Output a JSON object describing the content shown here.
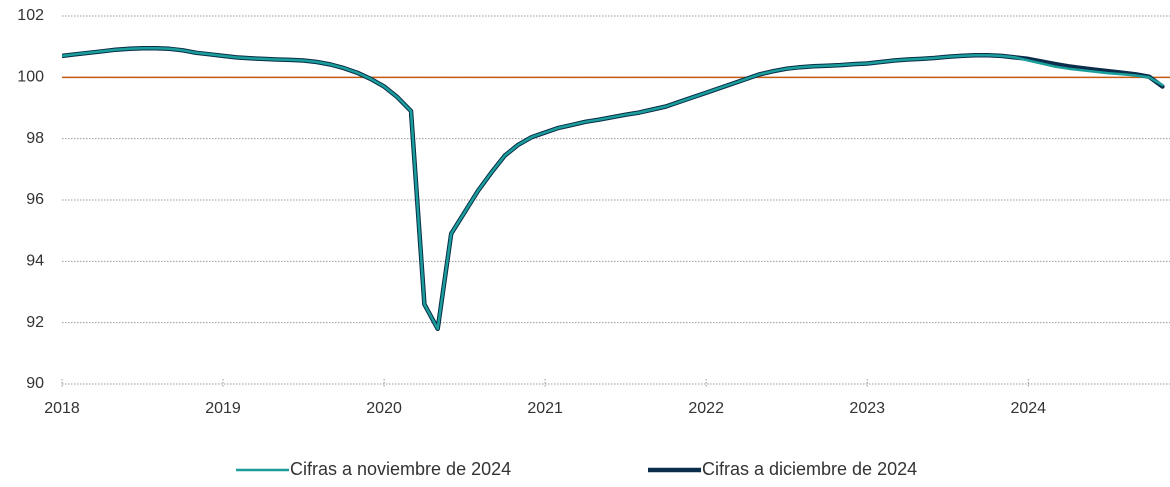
{
  "chart_data": {
    "type": "line",
    "x": [
      2018,
      2018.083,
      2018.167,
      2018.25,
      2018.333,
      2018.417,
      2018.5,
      2018.583,
      2018.667,
      2018.75,
      2018.833,
      2018.917,
      2019,
      2019.083,
      2019.167,
      2019.25,
      2019.333,
      2019.417,
      2019.5,
      2019.583,
      2019.667,
      2019.75,
      2019.833,
      2019.917,
      2020,
      2020.083,
      2020.167,
      2020.25,
      2020.333,
      2020.417,
      2020.5,
      2020.583,
      2020.667,
      2020.75,
      2020.833,
      2020.917,
      2021,
      2021.083,
      2021.167,
      2021.25,
      2021.333,
      2021.417,
      2021.5,
      2021.583,
      2021.667,
      2021.75,
      2021.833,
      2021.917,
      2022,
      2022.083,
      2022.167,
      2022.25,
      2022.333,
      2022.417,
      2022.5,
      2022.583,
      2022.667,
      2022.75,
      2022.833,
      2022.917,
      2023,
      2023.083,
      2023.167,
      2023.25,
      2023.333,
      2023.417,
      2023.5,
      2023.583,
      2023.667,
      2023.75,
      2023.833,
      2023.917,
      2024,
      2024.083,
      2024.167,
      2024.25,
      2024.333,
      2024.417,
      2024.5,
      2024.583,
      2024.667,
      2024.75,
      2024.833
    ],
    "series": [
      {
        "name": "Cifras a noviembre de 2024",
        "color": "#1a9e9a",
        "values": [
          100.7,
          100.75,
          100.8,
          100.85,
          100.9,
          100.93,
          100.95,
          100.95,
          100.93,
          100.88,
          100.8,
          100.75,
          100.7,
          100.65,
          100.62,
          100.6,
          100.58,
          100.57,
          100.55,
          100.5,
          100.42,
          100.3,
          100.15,
          99.95,
          99.7,
          99.35,
          98.9,
          92.6,
          91.8,
          94.9,
          95.6,
          96.3,
          96.9,
          97.45,
          97.8,
          98.05,
          98.2,
          98.35,
          98.45,
          98.55,
          98.62,
          98.7,
          98.78,
          98.85,
          98.95,
          99.05,
          99.2,
          99.35,
          99.5,
          99.65,
          99.8,
          99.95,
          100.1,
          100.2,
          100.28,
          100.33,
          100.36,
          100.38,
          100.4,
          100.43,
          100.45,
          100.5,
          100.55,
          100.58,
          100.6,
          100.63,
          100.67,
          100.7,
          100.72,
          100.72,
          100.7,
          100.65,
          100.55,
          100.45,
          100.35,
          100.28,
          100.23,
          100.18,
          100.13,
          100.1,
          100.06,
          100.0,
          99.75
        ]
      },
      {
        "name": "Cifras a diciembre de 2024",
        "color": "#0b2c4a",
        "values": [
          100.7,
          100.75,
          100.8,
          100.85,
          100.9,
          100.93,
          100.95,
          100.95,
          100.93,
          100.88,
          100.8,
          100.75,
          100.7,
          100.65,
          100.62,
          100.6,
          100.58,
          100.57,
          100.55,
          100.5,
          100.42,
          100.3,
          100.15,
          99.95,
          99.7,
          99.35,
          98.9,
          92.6,
          91.8,
          94.9,
          95.6,
          96.3,
          96.9,
          97.45,
          97.8,
          98.05,
          98.2,
          98.35,
          98.45,
          98.55,
          98.62,
          98.7,
          98.78,
          98.85,
          98.95,
          99.05,
          99.2,
          99.35,
          99.5,
          99.65,
          99.8,
          99.95,
          100.1,
          100.2,
          100.28,
          100.33,
          100.36,
          100.38,
          100.4,
          100.43,
          100.45,
          100.5,
          100.55,
          100.58,
          100.6,
          100.63,
          100.67,
          100.7,
          100.72,
          100.72,
          100.7,
          100.65,
          100.6,
          100.52,
          100.43,
          100.36,
          100.3,
          100.25,
          100.2,
          100.15,
          100.1,
          100.02,
          99.7
        ]
      }
    ],
    "reference_line": {
      "value": 100,
      "color": "#c55a11"
    },
    "xlim": [
      2018,
      2024.88
    ],
    "xticks": [
      2018,
      2019,
      2020,
      2021,
      2022,
      2023,
      2024
    ],
    "ylim": [
      90,
      102
    ],
    "yticks": [
      90,
      92,
      94,
      96,
      98,
      100,
      102
    ],
    "grid": true,
    "legend": "bottom"
  }
}
